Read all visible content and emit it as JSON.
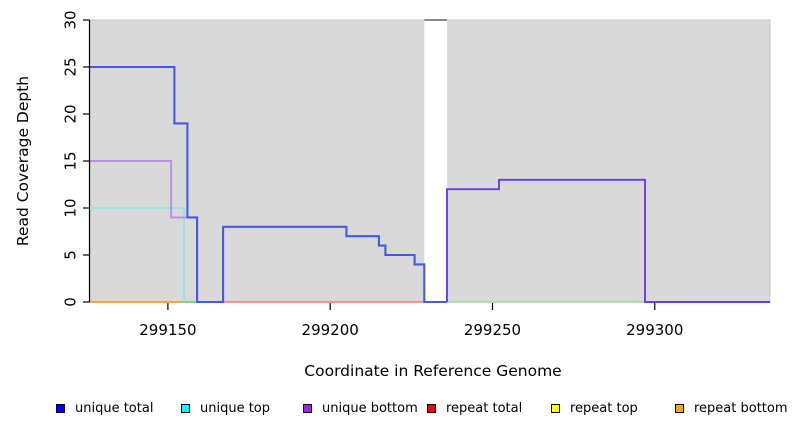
{
  "chart_data": {
    "type": "line",
    "subtype": "step-coverage",
    "title": "",
    "xlabel": "Coordinate in Reference Genome",
    "ylabel": "Read Coverage Depth",
    "xlim": [
      299126,
      299335.5
    ],
    "ylim": [
      0,
      30
    ],
    "x_ticks": [
      "299150",
      "299200",
      "299250",
      "299300"
    ],
    "x_tick_values": [
      299150,
      299200,
      299250,
      299300
    ],
    "y_ticks": [
      "0",
      "5",
      "10",
      "15",
      "20",
      "25",
      "30"
    ],
    "y_tick_values": [
      0,
      5,
      10,
      15,
      20,
      25,
      30
    ],
    "grid": false,
    "panel_bg": "#d9d9d9",
    "panel_border": "#c6c6c6",
    "gap": {
      "x0": 299229,
      "x1": 299236,
      "fill": "#ffffff",
      "top_border": "#8a8a8a"
    },
    "series": [
      {
        "name": "repeat total",
        "color": "#ee6868",
        "width": 1.3,
        "segments": [
          {
            "points": [
              [
                299167,
                0
              ],
              [
                299229,
                0
              ]
            ]
          }
        ]
      },
      {
        "name": "repeat top",
        "color": "#5fc472",
        "width": 1.4,
        "segments": [
          {
            "color": "#5fc472",
            "points": [
              [
                299154,
                0
              ],
              [
                299159,
                0
              ]
            ]
          },
          {
            "color": "#98dc98",
            "points": [
              [
                299236,
                0
              ],
              [
                299297,
                0
              ]
            ]
          }
        ]
      },
      {
        "name": "repeat bottom",
        "color": "#f59d38",
        "width": 1.8,
        "segments": [
          {
            "points": [
              [
                299126,
                0
              ],
              [
                299154,
                0
              ]
            ]
          }
        ]
      },
      {
        "name": "unique top",
        "color": "#7de9e9",
        "width": 1.5,
        "segments": [
          {
            "points": [
              [
                299126,
                10
              ],
              [
                299155,
                10
              ],
              [
                299155,
                0
              ]
            ]
          }
        ]
      },
      {
        "name": "unique bottom",
        "color": "#6a3be2",
        "width": 1.9,
        "segments": [
          {
            "color": "#b98fe0",
            "points": [
              [
                299126,
                15
              ],
              [
                299151,
                15
              ],
              [
                299151,
                9
              ],
              [
                299159,
                9
              ],
              [
                299159,
                0
              ],
              [
                299167,
                0
              ]
            ]
          },
          {
            "color": "#6a3be2",
            "points": [
              [
                299236,
                0
              ],
              [
                299236,
                12
              ],
              [
                299252,
                12
              ],
              [
                299252,
                13
              ],
              [
                299297,
                13
              ],
              [
                299297,
                0
              ],
              [
                299335.5,
                0
              ]
            ]
          }
        ]
      },
      {
        "name": "unique total",
        "color": "#4459e4",
        "width": 2.1,
        "segments": [
          {
            "points": [
              [
                299126,
                25
              ],
              [
                299152,
                25
              ],
              [
                299152,
                19
              ],
              [
                299156,
                19
              ],
              [
                299156,
                9
              ],
              [
                299159,
                9
              ],
              [
                299159,
                0
              ],
              [
                299167,
                0
              ],
              [
                299167,
                8
              ],
              [
                299205,
                8
              ],
              [
                299205,
                7
              ],
              [
                299215,
                7
              ],
              [
                299215,
                6
              ],
              [
                299217,
                6
              ],
              [
                299217,
                5
              ],
              [
                299226,
                5
              ],
              [
                299226,
                4
              ],
              [
                299229,
                4
              ],
              [
                299229,
                0
              ],
              [
                299236,
                0
              ]
            ]
          }
        ]
      }
    ],
    "legend": {
      "position": "bottom",
      "items": [
        {
          "label": "unique total",
          "color": "#0000ff"
        },
        {
          "label": "unique top",
          "color": "#00ffff"
        },
        {
          "label": "unique bottom",
          "color": "#a020f0"
        },
        {
          "label": "repeat total",
          "color": "#ff0000"
        },
        {
          "label": "repeat top",
          "color": "#ffff00"
        },
        {
          "label": "repeat bottom",
          "color": "#ffa500"
        }
      ]
    }
  }
}
